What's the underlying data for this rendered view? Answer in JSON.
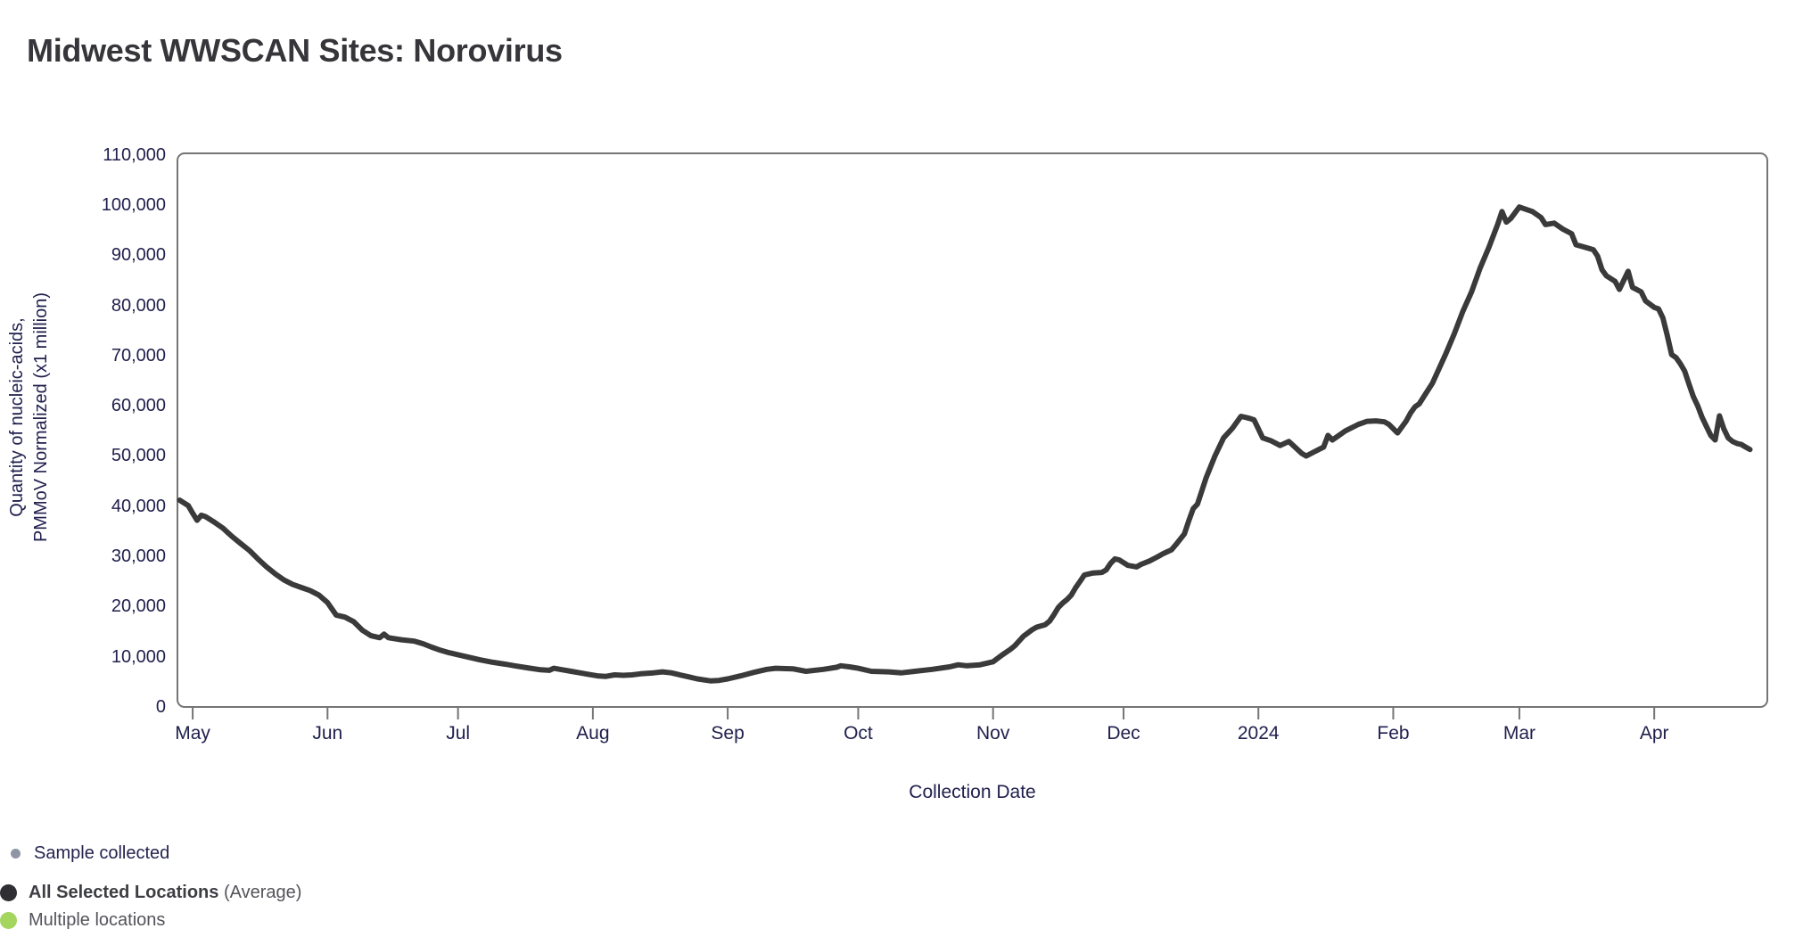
{
  "title": "Midwest WWSCAN Sites: Norovirus",
  "colors": {
    "background": "#ffffff",
    "title_text": "#35353a",
    "axis_text": "#20204e",
    "frame": "#757575",
    "tick": "#757575",
    "series_line": "#3a3a3a",
    "legend_text": "#53535a",
    "legend_text_bold": "#3d3d44",
    "legend_sample_text": "#23234f",
    "marker_sample": "#8f95a4",
    "marker_all_selected": "#2f2f33",
    "marker_multiple": "#a4d55f"
  },
  "legend": {
    "items": [
      {
        "id": "sample-collected",
        "label": "Sample collected",
        "marker_color": "#8f95a4",
        "marker_size": "small"
      },
      {
        "id": "all-selected-locations",
        "label": "All Selected Locations",
        "label_suffix": " (Average)",
        "marker_color": "#2f2f33",
        "marker_size": "large",
        "bold": true
      },
      {
        "id": "multiple-locations",
        "label": "Multiple locations",
        "marker_color": "#a4d55f",
        "marker_size": "large"
      }
    ]
  },
  "chart_data": {
    "type": "line",
    "title": "Midwest WWSCAN Sites: Norovirus",
    "xlabel": "Collection Date",
    "ylabel_lines": [
      "Quantity of nucleic-acids,",
      "PMMoV Normalized (x1 million)"
    ],
    "ylim": [
      0,
      110300
    ],
    "grid": false,
    "legend_position": "bottom-left",
    "x_domain": [
      "2023-04-27T12:00:00Z",
      "2024-04-27T00:00:00Z"
    ],
    "y_ticks": [
      {
        "value": 0,
        "label": "0"
      },
      {
        "value": 10000,
        "label": "10,000"
      },
      {
        "value": 20000,
        "label": "20,000"
      },
      {
        "value": 30000,
        "label": "30,000"
      },
      {
        "value": 40000,
        "label": "40,000"
      },
      {
        "value": 50000,
        "label": "50,000"
      },
      {
        "value": 60000,
        "label": "60,000"
      },
      {
        "value": 70000,
        "label": "70,000"
      },
      {
        "value": 80000,
        "label": "80,000"
      },
      {
        "value": 90000,
        "label": "90,000"
      },
      {
        "value": 100000,
        "label": "100,000"
      },
      {
        "value": 110000,
        "label": "110,000"
      }
    ],
    "x_ticks": [
      {
        "date": "2023-05-01",
        "label": "May"
      },
      {
        "date": "2023-06-01",
        "label": "Jun"
      },
      {
        "date": "2023-07-01",
        "label": "Jul"
      },
      {
        "date": "2023-08-01",
        "label": "Aug"
      },
      {
        "date": "2023-09-01",
        "label": "Sep"
      },
      {
        "date": "2023-10-01",
        "label": "Oct"
      },
      {
        "date": "2023-11-01",
        "label": "Nov"
      },
      {
        "date": "2023-12-01",
        "label": "Dec"
      },
      {
        "date": "2024-01-01",
        "label": "2024"
      },
      {
        "date": "2024-02-01",
        "label": "Feb"
      },
      {
        "date": "2024-03-01",
        "label": "Mar"
      },
      {
        "date": "2024-04-01",
        "label": "Apr"
      }
    ],
    "series": [
      {
        "name": "All Selected Locations (Average)",
        "color": "#3a3a3a",
        "stroke_width": 6,
        "points": [
          [
            "2023-04-28",
            41200
          ],
          [
            "2023-04-30",
            40100
          ],
          [
            "2023-05-01",
            38600
          ],
          [
            "2023-05-02",
            37200
          ],
          [
            "2023-05-03",
            38200
          ],
          [
            "2023-05-04",
            37900
          ],
          [
            "2023-05-06",
            36800
          ],
          [
            "2023-05-08",
            35600
          ],
          [
            "2023-05-10",
            34000
          ],
          [
            "2023-05-12",
            32600
          ],
          [
            "2023-05-14",
            31200
          ],
          [
            "2023-05-16",
            29500
          ],
          [
            "2023-05-18",
            27900
          ],
          [
            "2023-05-20",
            26500
          ],
          [
            "2023-05-22",
            25300
          ],
          [
            "2023-05-24",
            24400
          ],
          [
            "2023-05-26",
            23800
          ],
          [
            "2023-05-28",
            23200
          ],
          [
            "2023-05-30",
            22300
          ],
          [
            "2023-06-01",
            20800
          ],
          [
            "2023-06-03",
            18300
          ],
          [
            "2023-06-05",
            17900
          ],
          [
            "2023-06-07",
            17000
          ],
          [
            "2023-06-09",
            15300
          ],
          [
            "2023-06-11",
            14200
          ],
          [
            "2023-06-13",
            13800
          ],
          [
            "2023-06-14",
            14500
          ],
          [
            "2023-06-15",
            13800
          ],
          [
            "2023-06-18",
            13400
          ],
          [
            "2023-06-21",
            13100
          ],
          [
            "2023-06-23",
            12600
          ],
          [
            "2023-06-25",
            11900
          ],
          [
            "2023-06-27",
            11300
          ],
          [
            "2023-06-29",
            10800
          ],
          [
            "2023-07-01",
            10400
          ],
          [
            "2023-07-03",
            10000
          ],
          [
            "2023-07-06",
            9400
          ],
          [
            "2023-07-09",
            8900
          ],
          [
            "2023-07-12",
            8500
          ],
          [
            "2023-07-14",
            8200
          ],
          [
            "2023-07-17",
            7800
          ],
          [
            "2023-07-20",
            7400
          ],
          [
            "2023-07-22",
            7300
          ],
          [
            "2023-07-23",
            7700
          ],
          [
            "2023-07-25",
            7400
          ],
          [
            "2023-07-27",
            7100
          ],
          [
            "2023-07-29",
            6800
          ],
          [
            "2023-07-31",
            6500
          ],
          [
            "2023-08-02",
            6200
          ],
          [
            "2023-08-04",
            6100
          ],
          [
            "2023-08-06",
            6400
          ],
          [
            "2023-08-08",
            6300
          ],
          [
            "2023-08-10",
            6400
          ],
          [
            "2023-08-12",
            6600
          ],
          [
            "2023-08-15",
            6800
          ],
          [
            "2023-08-17",
            7000
          ],
          [
            "2023-08-19",
            6800
          ],
          [
            "2023-08-21",
            6400
          ],
          [
            "2023-08-23",
            6000
          ],
          [
            "2023-08-25",
            5600
          ],
          [
            "2023-08-28",
            5200
          ],
          [
            "2023-08-30",
            5300
          ],
          [
            "2023-09-01",
            5600
          ],
          [
            "2023-09-04",
            6200
          ],
          [
            "2023-09-07",
            6900
          ],
          [
            "2023-09-10",
            7500
          ],
          [
            "2023-09-12",
            7700
          ],
          [
            "2023-09-16",
            7600
          ],
          [
            "2023-09-19",
            7100
          ],
          [
            "2023-09-23",
            7500
          ],
          [
            "2023-09-26",
            7900
          ],
          [
            "2023-09-27",
            8200
          ],
          [
            "2023-09-29",
            8000
          ],
          [
            "2023-10-01",
            7700
          ],
          [
            "2023-10-04",
            7100
          ],
          [
            "2023-10-08",
            7000
          ],
          [
            "2023-10-11",
            6800
          ],
          [
            "2023-10-14",
            7100
          ],
          [
            "2023-10-18",
            7500
          ],
          [
            "2023-10-22",
            8000
          ],
          [
            "2023-10-24",
            8400
          ],
          [
            "2023-10-26",
            8200
          ],
          [
            "2023-10-29",
            8400
          ],
          [
            "2023-11-01",
            9000
          ],
          [
            "2023-11-03",
            10300
          ],
          [
            "2023-11-05",
            11500
          ],
          [
            "2023-11-06",
            12200
          ],
          [
            "2023-11-08",
            14100
          ],
          [
            "2023-11-10",
            15400
          ],
          [
            "2023-11-11",
            15900
          ],
          [
            "2023-11-13",
            16400
          ],
          [
            "2023-11-14",
            17100
          ],
          [
            "2023-11-15",
            18400
          ],
          [
            "2023-11-16",
            19800
          ],
          [
            "2023-11-17",
            20700
          ],
          [
            "2023-11-18",
            21400
          ],
          [
            "2023-11-19",
            22300
          ],
          [
            "2023-11-20",
            23800
          ],
          [
            "2023-11-21",
            25000
          ],
          [
            "2023-11-22",
            26300
          ],
          [
            "2023-11-24",
            26700
          ],
          [
            "2023-11-26",
            26800
          ],
          [
            "2023-11-27",
            27300
          ],
          [
            "2023-11-28",
            28600
          ],
          [
            "2023-11-29",
            29500
          ],
          [
            "2023-11-30",
            29300
          ],
          [
            "2023-12-02",
            28200
          ],
          [
            "2023-12-04",
            27900
          ],
          [
            "2023-12-05",
            28400
          ],
          [
            "2023-12-07",
            29100
          ],
          [
            "2023-12-09",
            30000
          ],
          [
            "2023-12-10",
            30500
          ],
          [
            "2023-12-11",
            30900
          ],
          [
            "2023-12-12",
            31300
          ],
          [
            "2023-12-13",
            32300
          ],
          [
            "2023-12-15",
            34500
          ],
          [
            "2023-12-16",
            37100
          ],
          [
            "2023-12-17",
            39500
          ],
          [
            "2023-12-18",
            40400
          ],
          [
            "2023-12-20",
            45700
          ],
          [
            "2023-12-22",
            50000
          ],
          [
            "2023-12-24",
            53600
          ],
          [
            "2023-12-26",
            55500
          ],
          [
            "2023-12-28",
            57900
          ],
          [
            "2023-12-30",
            57500
          ],
          [
            "2023-12-31",
            57200
          ],
          [
            "2024-01-02",
            53600
          ],
          [
            "2024-01-04",
            53000
          ],
          [
            "2024-01-06",
            52100
          ],
          [
            "2024-01-08",
            52900
          ],
          [
            "2024-01-09",
            52100
          ],
          [
            "2024-01-11",
            50500
          ],
          [
            "2024-01-12",
            50000
          ],
          [
            "2024-01-14",
            50900
          ],
          [
            "2024-01-16",
            51800
          ],
          [
            "2024-01-17",
            54100
          ],
          [
            "2024-01-18",
            53200
          ],
          [
            "2024-01-19",
            53800
          ],
          [
            "2024-01-21",
            55000
          ],
          [
            "2024-01-24",
            56300
          ],
          [
            "2024-01-26",
            56900
          ],
          [
            "2024-01-28",
            57000
          ],
          [
            "2024-01-30",
            56800
          ],
          [
            "2024-01-31",
            56300
          ],
          [
            "2024-02-02",
            54600
          ],
          [
            "2024-02-04",
            57000
          ],
          [
            "2024-02-05",
            58600
          ],
          [
            "2024-02-06",
            59800
          ],
          [
            "2024-02-07",
            60400
          ],
          [
            "2024-02-08",
            61800
          ],
          [
            "2024-02-10",
            64500
          ],
          [
            "2024-02-13",
            70200
          ],
          [
            "2024-02-15",
            74300
          ],
          [
            "2024-02-17",
            78800
          ],
          [
            "2024-02-19",
            82700
          ],
          [
            "2024-02-21",
            87500
          ],
          [
            "2024-02-23",
            91600
          ],
          [
            "2024-02-25",
            96100
          ],
          [
            "2024-02-26",
            98700
          ],
          [
            "2024-02-27",
            96600
          ],
          [
            "2024-02-28",
            97300
          ],
          [
            "2024-03-01",
            99600
          ],
          [
            "2024-03-02",
            99300
          ],
          [
            "2024-03-04",
            98700
          ],
          [
            "2024-03-06",
            97500
          ],
          [
            "2024-03-07",
            96100
          ],
          [
            "2024-03-09",
            96400
          ],
          [
            "2024-03-11",
            95200
          ],
          [
            "2024-03-13",
            94300
          ],
          [
            "2024-03-14",
            92100
          ],
          [
            "2024-03-16",
            91600
          ],
          [
            "2024-03-18",
            91100
          ],
          [
            "2024-03-19",
            89800
          ],
          [
            "2024-03-20",
            87100
          ],
          [
            "2024-03-21",
            85900
          ],
          [
            "2024-03-23",
            84800
          ],
          [
            "2024-03-24",
            83200
          ],
          [
            "2024-03-26",
            86800
          ],
          [
            "2024-03-27",
            83600
          ],
          [
            "2024-03-29",
            82700
          ],
          [
            "2024-03-30",
            80900
          ],
          [
            "2024-04-01",
            79600
          ],
          [
            "2024-04-02",
            79300
          ],
          [
            "2024-04-03",
            77500
          ],
          [
            "2024-04-04",
            74000
          ],
          [
            "2024-04-05",
            70200
          ],
          [
            "2024-04-06",
            69600
          ],
          [
            "2024-04-07",
            68400
          ],
          [
            "2024-04-08",
            66900
          ],
          [
            "2024-04-09",
            64300
          ],
          [
            "2024-04-10",
            61800
          ],
          [
            "2024-04-11",
            60000
          ],
          [
            "2024-04-12",
            57700
          ],
          [
            "2024-04-13",
            55900
          ],
          [
            "2024-04-14",
            54100
          ],
          [
            "2024-04-15",
            53200
          ],
          [
            "2024-04-16",
            58000
          ],
          [
            "2024-04-17",
            55400
          ],
          [
            "2024-04-18",
            53600
          ],
          [
            "2024-04-19",
            52900
          ],
          [
            "2024-04-20",
            52500
          ],
          [
            "2024-04-21",
            52300
          ],
          [
            "2024-04-22",
            51800
          ],
          [
            "2024-04-23",
            51300
          ]
        ]
      }
    ]
  }
}
